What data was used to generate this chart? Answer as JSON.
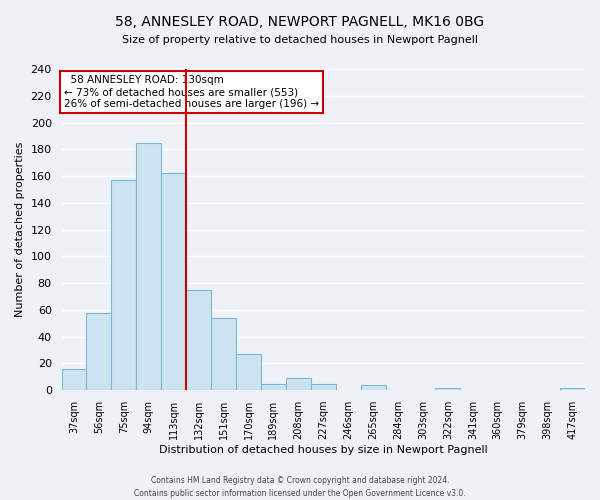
{
  "title": "58, ANNESLEY ROAD, NEWPORT PAGNELL, MK16 0BG",
  "subtitle": "Size of property relative to detached houses in Newport Pagnell",
  "xlabel": "Distribution of detached houses by size in Newport Pagnell",
  "ylabel": "Number of detached properties",
  "bar_color": "#cce4f0",
  "bar_edge_color": "#7ab8d4",
  "background_color": "#eef2f7",
  "grid_color": "white",
  "categories": [
    "37sqm",
    "56sqm",
    "75sqm",
    "94sqm",
    "113sqm",
    "132sqm",
    "151sqm",
    "170sqm",
    "189sqm",
    "208sqm",
    "227sqm",
    "246sqm",
    "265sqm",
    "284sqm",
    "303sqm",
    "322sqm",
    "341sqm",
    "360sqm",
    "379sqm",
    "398sqm",
    "417sqm"
  ],
  "values": [
    16,
    58,
    157,
    185,
    162,
    75,
    54,
    27,
    5,
    9,
    5,
    0,
    4,
    0,
    0,
    2,
    0,
    0,
    0,
    0,
    2
  ],
  "ylim": [
    0,
    240
  ],
  "yticks": [
    0,
    20,
    40,
    60,
    80,
    100,
    120,
    140,
    160,
    180,
    200,
    220,
    240
  ],
  "vline_index": 5,
  "vline_color": "#cc0000",
  "annotation_title": "58 ANNESLEY ROAD: 130sqm",
  "annotation_line1": "← 73% of detached houses are smaller (553)",
  "annotation_line2": "26% of semi-detached houses are larger (196) →",
  "annotation_box_color": "white",
  "annotation_box_edge": "#cc0000",
  "footer1": "Contains HM Land Registry data © Crown copyright and database right 2024.",
  "footer2": "Contains public sector information licensed under the Open Government Licence v3.0."
}
